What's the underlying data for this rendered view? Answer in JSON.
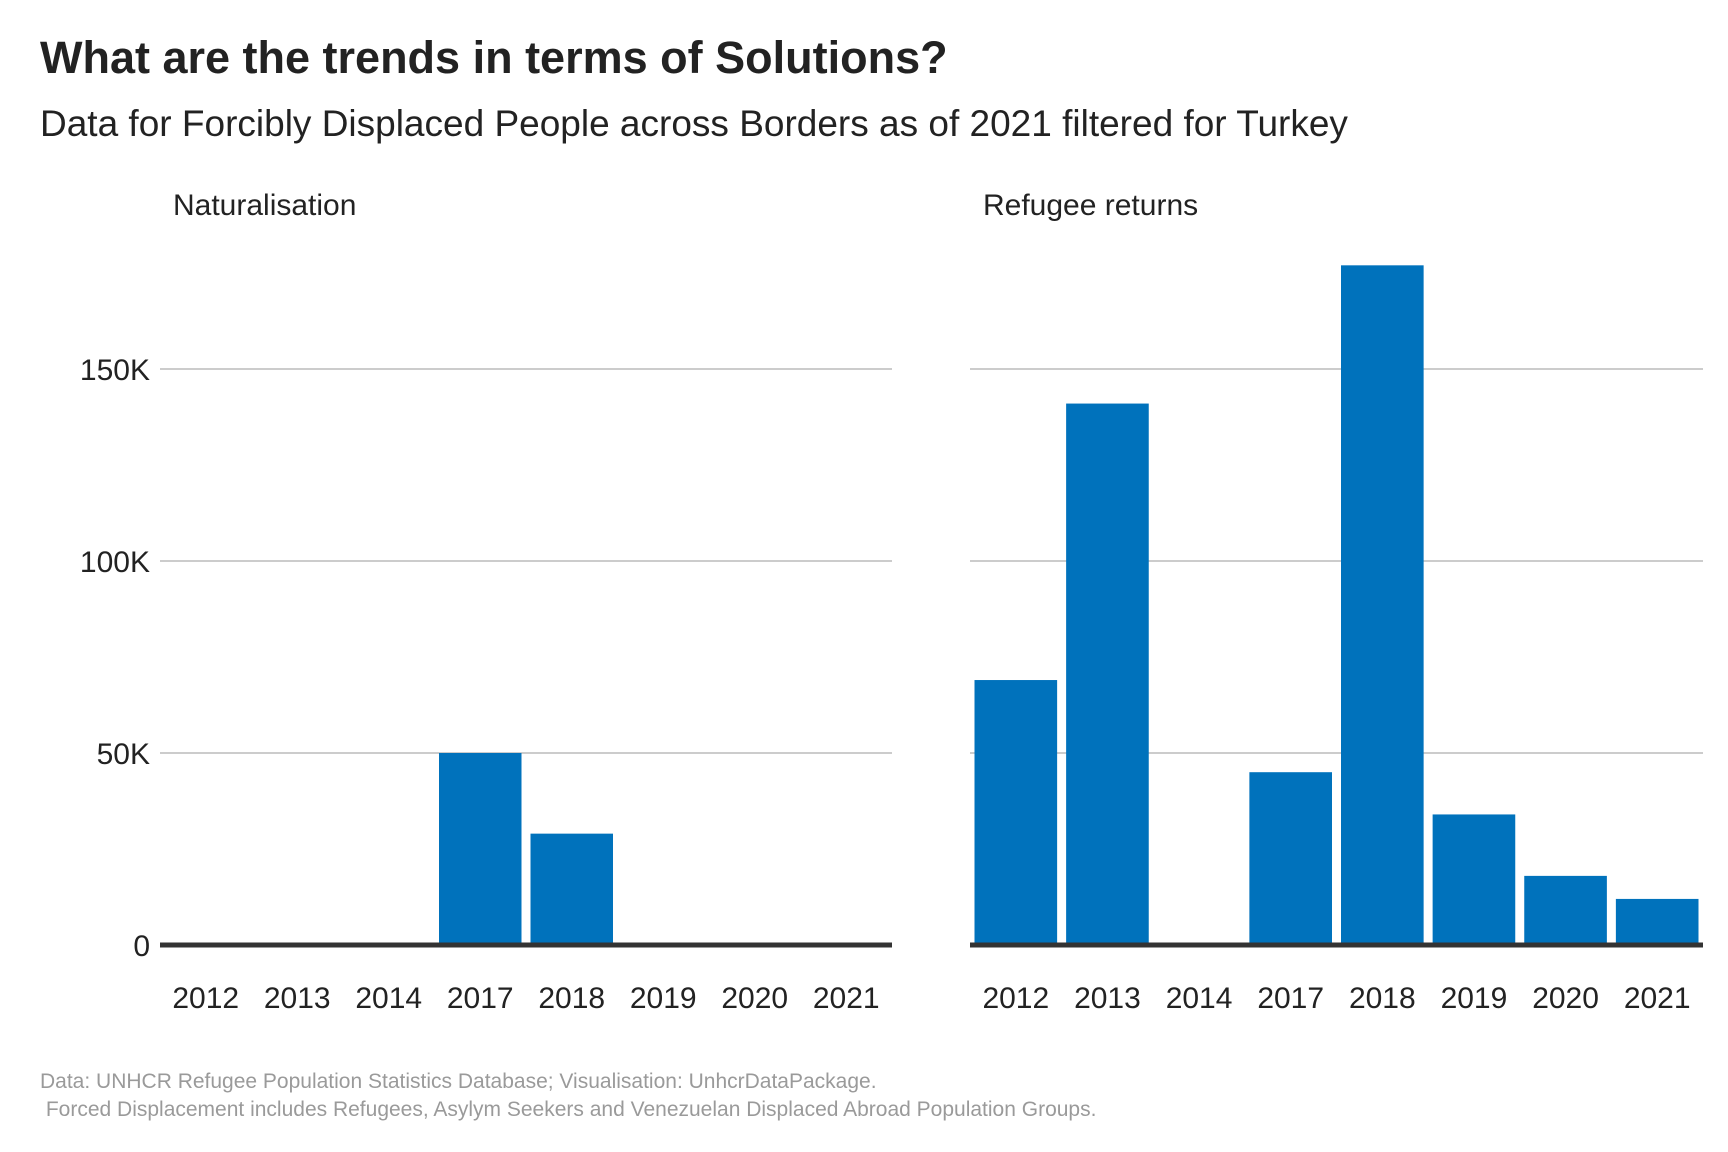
{
  "title": "What are the trends in terms of Solutions?",
  "subtitle": "Data for Forcibly Displaced People across Borders as of 2021 filtered for Turkey",
  "caption": [
    "Data: UNHCR Refugee Population Statistics Database; Visualisation: UnhcrDataPackage.",
    " Forced Displacement includes Refugees, Asylym Seekers and Venezuelan Displaced Abroad Population Groups."
  ],
  "colors": {
    "bar": "#0072BC",
    "gridline": "#cccccc",
    "baseline": "#333333",
    "text": "#222222",
    "caption": "#9a9a9a"
  },
  "chart_data": [
    {
      "type": "bar",
      "title": "Naturalisation",
      "categories": [
        "2012",
        "2013",
        "2014",
        "2017",
        "2018",
        "2019",
        "2020",
        "2021"
      ],
      "values": [
        0,
        0,
        0,
        50000,
        29000,
        0,
        0,
        0
      ],
      "ylim": [
        0,
        180000
      ],
      "yticks": [
        0,
        50000,
        100000,
        150000
      ],
      "ytick_labels": [
        "0",
        "50K",
        "100K",
        "150K"
      ],
      "grid": true,
      "xlabel": "",
      "ylabel": ""
    },
    {
      "type": "bar",
      "title": "Refugee returns",
      "categories": [
        "2012",
        "2013",
        "2014",
        "2017",
        "2018",
        "2019",
        "2020",
        "2021"
      ],
      "values": [
        69000,
        141000,
        0,
        45000,
        177000,
        34000,
        18000,
        12000
      ],
      "ylim": [
        0,
        180000
      ],
      "yticks": [
        0,
        50000,
        100000,
        150000
      ],
      "ytick_labels": [
        "0",
        "50K",
        "100K",
        "150K"
      ],
      "grid": true,
      "xlabel": "",
      "ylabel": ""
    }
  ]
}
